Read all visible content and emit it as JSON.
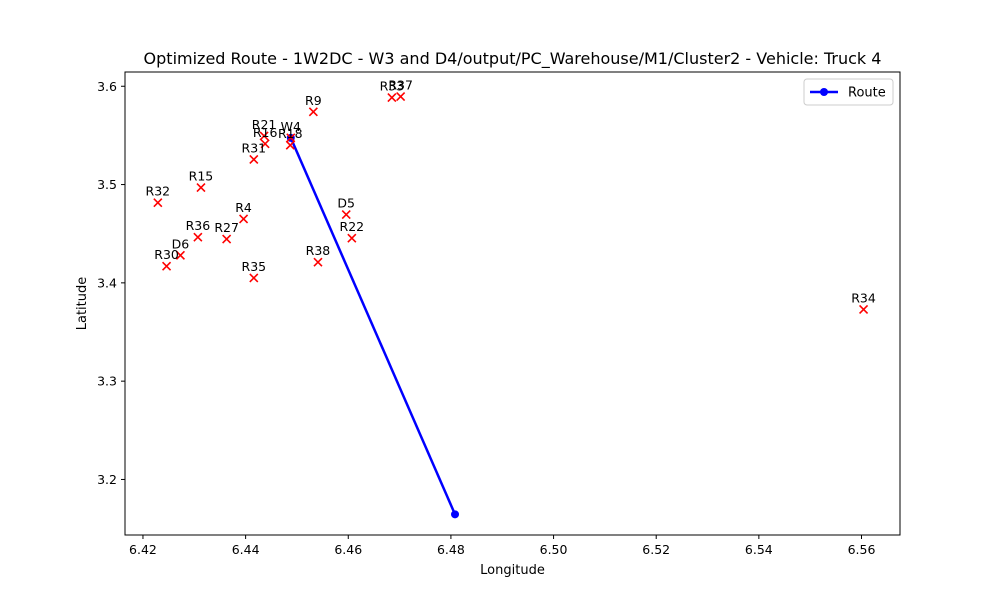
{
  "chart_data": {
    "type": "scatter",
    "title": "Optimized Route - 1W2DC - W3 and D4/output/PC_Warehouse/M1/Cluster2 - Vehicle: Truck 4",
    "xlabel": "Longitude",
    "ylabel": "Latitude",
    "xlim": [
      6.4165,
      6.5675
    ],
    "ylim": [
      3.1435,
      3.6145
    ],
    "xticks": [
      "6.42",
      "6.44",
      "6.46",
      "6.48",
      "6.50",
      "6.52",
      "6.54",
      "6.56"
    ],
    "yticks": [
      "3.2",
      "3.3",
      "3.4",
      "3.5",
      "3.6"
    ],
    "grid": false,
    "legend_position": "top-right",
    "locations": [
      {
        "label": "R9",
        "x": 6.4532,
        "y": 3.574
      },
      {
        "label": "R33",
        "x": 6.4685,
        "y": 3.5885
      },
      {
        "label": "R37",
        "x": 6.4702,
        "y": 3.5895
      },
      {
        "label": "R21",
        "x": 6.4436,
        "y": 3.5495
      },
      {
        "label": "R16",
        "x": 6.4438,
        "y": 3.5415
      },
      {
        "label": "W4",
        "x": 6.4488,
        "y": 3.5475
      },
      {
        "label": "R18",
        "x": 6.4487,
        "y": 3.54
      },
      {
        "label": "R31",
        "x": 6.4416,
        "y": 3.5255
      },
      {
        "label": "R15",
        "x": 6.4313,
        "y": 3.497
      },
      {
        "label": "R32",
        "x": 6.4229,
        "y": 3.4815
      },
      {
        "label": "D5",
        "x": 6.4596,
        "y": 3.4695
      },
      {
        "label": "R4",
        "x": 6.4396,
        "y": 3.465
      },
      {
        "label": "R22",
        "x": 6.4607,
        "y": 3.4455
      },
      {
        "label": "R36",
        "x": 6.4307,
        "y": 3.4465
      },
      {
        "label": "R27",
        "x": 6.4363,
        "y": 3.4445
      },
      {
        "label": "D6",
        "x": 6.4273,
        "y": 3.428
      },
      {
        "label": "R30",
        "x": 6.4246,
        "y": 3.417
      },
      {
        "label": "R38",
        "x": 6.4541,
        "y": 3.421
      },
      {
        "label": "R35",
        "x": 6.4416,
        "y": 3.405
      },
      {
        "label": "R34",
        "x": 6.5604,
        "y": 3.373
      }
    ],
    "series": [
      {
        "name": "Route",
        "type": "line",
        "color": "#0000ff",
        "x": [
          6.4488,
          6.4808
        ],
        "y": [
          3.5475,
          3.1645
        ]
      }
    ],
    "location_marker_color": "#ff0000",
    "location_marker": "x"
  }
}
